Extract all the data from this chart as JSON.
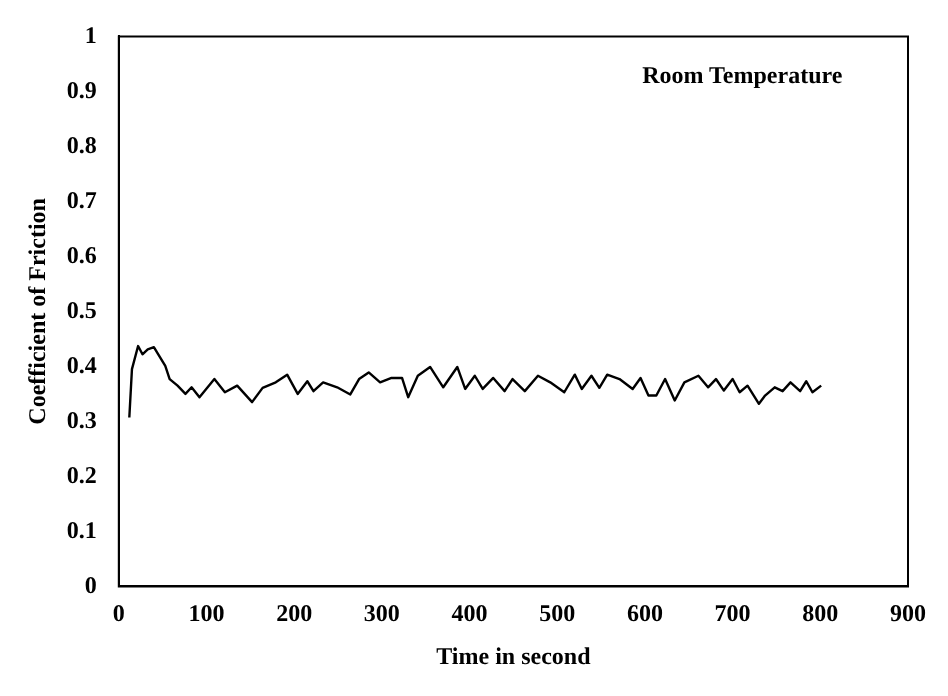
{
  "chart_data": {
    "type": "line",
    "xlabel": "Time in second",
    "ylabel": "Coefficient of Friction",
    "annotations": [
      "Room Temperature"
    ],
    "xlim": [
      0,
      900
    ],
    "xticks": [
      0,
      100,
      200,
      300,
      400,
      500,
      600,
      700,
      800,
      900
    ],
    "ylim": [
      0,
      1
    ],
    "yticks": [
      0,
      0.1,
      0.2,
      0.3,
      0.4,
      0.5,
      0.6,
      0.7,
      0.8,
      0.9,
      1
    ],
    "grid": false,
    "legend": false,
    "marker": "none",
    "line_style": "solid",
    "series": [
      {
        "color": "#000000",
        "x": [
          12,
          15,
          22,
          27,
          33,
          40,
          45,
          53,
          58,
          67,
          76,
          83,
          92,
          109,
          121,
          135,
          152,
          164,
          179,
          192,
          204,
          215,
          222,
          233,
          249,
          264,
          274,
          285,
          298,
          311,
          323,
          330,
          341,
          355,
          370,
          386,
          395,
          406,
          415,
          427,
          440,
          449,
          463,
          478,
          492,
          508,
          520,
          528,
          539,
          548,
          557,
          571,
          586,
          595,
          604,
          613,
          623,
          634,
          645,
          661,
          672,
          681,
          690,
          700,
          708,
          717,
          730,
          737,
          748,
          757,
          766,
          777,
          784,
          791,
          801
        ],
        "values": [
          0.307,
          0.395,
          0.437,
          0.422,
          0.431,
          0.435,
          0.422,
          0.401,
          0.377,
          0.365,
          0.35,
          0.362,
          0.344,
          0.377,
          0.353,
          0.365,
          0.335,
          0.361,
          0.371,
          0.385,
          0.35,
          0.373,
          0.355,
          0.371,
          0.362,
          0.349,
          0.377,
          0.389,
          0.371,
          0.379,
          0.379,
          0.344,
          0.383,
          0.399,
          0.362,
          0.399,
          0.359,
          0.383,
          0.359,
          0.379,
          0.355,
          0.377,
          0.355,
          0.383,
          0.371,
          0.353,
          0.385,
          0.359,
          0.383,
          0.361,
          0.385,
          0.377,
          0.359,
          0.379,
          0.347,
          0.347,
          0.377,
          0.338,
          0.371,
          0.383,
          0.362,
          0.377,
          0.356,
          0.377,
          0.353,
          0.365,
          0.332,
          0.347,
          0.362,
          0.355,
          0.371,
          0.355,
          0.373,
          0.353,
          0.365
        ]
      }
    ]
  }
}
